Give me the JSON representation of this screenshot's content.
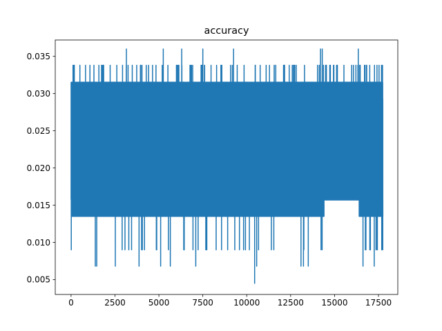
{
  "chart_data": {
    "type": "line",
    "title": "accuracy",
    "xlabel": "",
    "ylabel": "",
    "xlim": [
      -900,
      18600
    ],
    "ylim": [
      0.003,
      0.0372
    ],
    "xticks": [
      0,
      2500,
      5000,
      7500,
      10000,
      12500,
      15000,
      17500
    ],
    "xtick_labels": [
      "0",
      "2500",
      "5000",
      "7500",
      "10000",
      "12500",
      "15000",
      "17500"
    ],
    "yticks": [
      0.005,
      0.01,
      0.015,
      0.02,
      0.025,
      0.03,
      0.035
    ],
    "ytick_labels": [
      "0.005",
      "0.010",
      "0.015",
      "0.020",
      "0.025",
      "0.030",
      "0.035"
    ],
    "grid": false,
    "legend": "none",
    "n_points": 17800,
    "band": {
      "x_start": 0,
      "x_end": 17750,
      "upper_typical": 0.0315,
      "lower_typical": 0.0135,
      "upper_frequent_peak": 0.0338,
      "max": 0.036,
      "min_frequent_dip": 0.009,
      "min_rare_dip": 0.0068,
      "global_min": {
        "x": 10450,
        "y": 0.0045
      },
      "global_max_x": [
        3150,
        5250,
        6300,
        7500,
        9250,
        14200,
        14300,
        16350
      ],
      "late_region": {
        "x_start": 14400,
        "x_end": 16400,
        "lower": 0.0157
      },
      "end_value": 0.0135
    },
    "series": [
      {
        "color": "#1f77b4"
      }
    ]
  }
}
